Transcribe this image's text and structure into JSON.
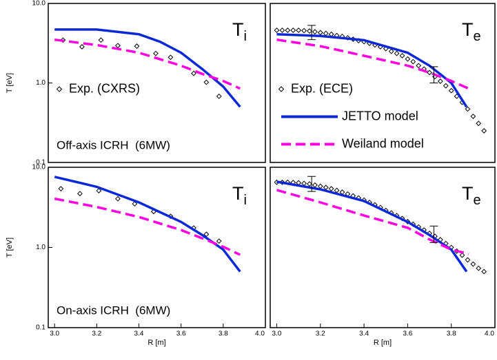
{
  "chart_data": [
    {
      "type": "line",
      "label": "T",
      "label_sub": "i",
      "ylabel": "T [eV]",
      "log_y": true,
      "xlim": [
        2.97,
        4.0
      ],
      "ylim": [
        0.1,
        10
      ],
      "yticks": [
        0.1,
        {
          "value": 1,
          "label": "1.0"
        },
        {
          "value": 10,
          "label": "10.0"
        }
      ],
      "annotation": "Off-axis ICRH  (6MW)",
      "legend": "center left",
      "series": [
        {
          "name": "Exp. (CXRS)",
          "color": "#000000",
          "style": "diamond",
          "x": [
            3.04,
            3.13,
            3.22,
            3.3,
            3.39,
            3.48,
            3.55,
            3.66,
            3.72,
            3.78
          ],
          "values": [
            3.46,
            2.85,
            3.46,
            2.95,
            2.9,
            2.35,
            2.1,
            1.32,
            1.02,
            0.68
          ]
        },
        {
          "color": "#0a28d8",
          "style": "solid",
          "x": [
            3.0,
            3.2,
            3.4,
            3.5,
            3.6,
            3.7,
            3.8,
            3.88
          ],
          "values": [
            4.7,
            4.7,
            4.1,
            3.3,
            2.4,
            1.5,
            0.9,
            0.5
          ]
        },
        {
          "color": "#ff00e0",
          "style": "dashed",
          "x": [
            3.0,
            3.2,
            3.4,
            3.6,
            3.7,
            3.8,
            3.88
          ],
          "values": [
            3.5,
            3.0,
            2.4,
            1.65,
            1.3,
            1.06,
            0.85
          ]
        }
      ]
    },
    {
      "type": "line",
      "label": "T",
      "label_sub": "e",
      "log_y": true,
      "xlim": [
        2.97,
        4.0
      ],
      "ylim": [
        0.1,
        10
      ],
      "legend": "center left",
      "error_bars": [
        {
          "x": 3.16,
          "y": 4.4,
          "low": 3.5,
          "high": 5.3
        },
        {
          "x": 3.72,
          "y": 1.25,
          "low": 1.0,
          "high": 1.6
        }
      ],
      "series": [
        {
          "name": "Exp. (ECE)",
          "color": "#000000",
          "style": "diamond",
          "x": [
            3.0,
            3.025,
            3.05,
            3.075,
            3.1,
            3.125,
            3.15,
            3.175,
            3.2,
            3.225,
            3.25,
            3.275,
            3.3,
            3.325,
            3.35,
            3.375,
            3.4,
            3.425,
            3.45,
            3.475,
            3.5,
            3.525,
            3.55,
            3.575,
            3.6,
            3.625,
            3.65,
            3.675,
            3.7,
            3.725,
            3.75,
            3.775,
            3.8,
            3.825,
            3.85,
            3.875,
            3.9,
            3.925,
            3.95
          ],
          "values": [
            4.6,
            4.6,
            4.6,
            4.6,
            4.6,
            4.55,
            4.5,
            4.4,
            4.3,
            4.2,
            4.1,
            3.95,
            3.85,
            3.7,
            3.55,
            3.4,
            3.3,
            3.15,
            3.0,
            2.85,
            2.7,
            2.5,
            2.35,
            2.2,
            2.0,
            1.85,
            1.65,
            1.5,
            1.35,
            1.2,
            1.05,
            0.92,
            0.8,
            0.68,
            0.57,
            0.47,
            0.38,
            0.31,
            0.25
          ]
        },
        {
          "name": "JETTO model",
          "color": "#0a28d8",
          "style": "solid",
          "x": [
            3.0,
            3.2,
            3.4,
            3.6,
            3.7,
            3.8,
            3.87
          ],
          "values": [
            4.1,
            3.9,
            3.45,
            2.4,
            1.65,
            1.0,
            0.5
          ]
        },
        {
          "name": "Weiland model",
          "color": "#ff00e0",
          "style": "dashed",
          "x": [
            3.0,
            3.2,
            3.4,
            3.6,
            3.7,
            3.8,
            3.88
          ],
          "values": [
            3.5,
            2.9,
            2.2,
            1.65,
            1.35,
            1.06,
            0.85
          ]
        }
      ]
    },
    {
      "type": "line",
      "label": "T",
      "label_sub": "i",
      "ylabel": "T [eV]",
      "xlabel": "R [m]",
      "log_y": true,
      "xlim": [
        2.97,
        4.0
      ],
      "ylim": [
        0.1,
        10
      ],
      "yticks": [
        0.1,
        {
          "value": 1,
          "label": "1.0"
        },
        {
          "value": 10,
          "label": "10.0"
        }
      ],
      "xticks": [
        {
          "value": 3,
          "label": "3.0"
        },
        3.2,
        3.4,
        3.6,
        3.8,
        {
          "value": 4,
          "label": "4.0"
        }
      ],
      "annotation": "On-axis ICRH  (6MW)",
      "series": [
        {
          "color": "#000000",
          "style": "diamond",
          "x": [
            3.03,
            3.12,
            3.21,
            3.3,
            3.38,
            3.47,
            3.55,
            3.66,
            3.72,
            3.78
          ],
          "values": [
            5.4,
            4.7,
            5.1,
            4.05,
            3.5,
            2.8,
            2.45,
            1.75,
            1.46,
            1.2
          ]
        },
        {
          "color": "#0a28d8",
          "style": "solid",
          "x": [
            3.0,
            3.2,
            3.4,
            3.6,
            3.7,
            3.8,
            3.88
          ],
          "values": [
            7.6,
            5.7,
            3.65,
            2.08,
            1.43,
            0.94,
            0.5
          ]
        },
        {
          "color": "#ff00e0",
          "style": "dashed",
          "x": [
            3.0,
            3.2,
            3.4,
            3.6,
            3.7,
            3.8,
            3.88
          ],
          "values": [
            4.06,
            3.2,
            2.4,
            1.65,
            1.3,
            1.02,
            0.81
          ]
        }
      ]
    },
    {
      "type": "line",
      "label": "T",
      "label_sub": "e",
      "xlabel": "R [m]",
      "log_y": true,
      "xlim": [
        2.97,
        4.0
      ],
      "ylim": [
        0.1,
        10
      ],
      "xticks": [
        {
          "value": 3,
          "label": "3.0"
        },
        3.2,
        3.4,
        3.6,
        3.8,
        {
          "value": 4,
          "label": "4.0"
        }
      ],
      "error_bars": [
        {
          "x": 3.16,
          "y": 6.3,
          "low": 5.0,
          "high": 7.7
        },
        {
          "x": 3.72,
          "y": 1.45,
          "low": 1.15,
          "high": 1.85
        }
      ],
      "series": [
        {
          "color": "#000000",
          "style": "diamond",
          "x": [
            3.0,
            3.025,
            3.05,
            3.075,
            3.1,
            3.125,
            3.15,
            3.175,
            3.2,
            3.225,
            3.25,
            3.275,
            3.3,
            3.325,
            3.35,
            3.375,
            3.4,
            3.425,
            3.45,
            3.475,
            3.5,
            3.525,
            3.55,
            3.575,
            3.6,
            3.625,
            3.65,
            3.675,
            3.7,
            3.725,
            3.75,
            3.775,
            3.8,
            3.825,
            3.85,
            3.875,
            3.9,
            3.925,
            3.95
          ],
          "values": [
            6.5,
            6.5,
            6.5,
            6.45,
            6.4,
            6.3,
            6.2,
            6.0,
            5.8,
            5.6,
            5.4,
            5.15,
            4.9,
            4.65,
            4.4,
            4.15,
            3.9,
            3.65,
            3.4,
            3.15,
            2.9,
            2.7,
            2.5,
            2.3,
            2.1,
            1.95,
            1.8,
            1.65,
            1.5,
            1.38,
            1.25,
            1.12,
            1.0,
            0.9,
            0.8,
            0.7,
            0.62,
            0.55,
            0.5
          ]
        },
        {
          "color": "#0a28d8",
          "style": "solid",
          "x": [
            3.0,
            3.2,
            3.4,
            3.6,
            3.7,
            3.8,
            3.87
          ],
          "values": [
            6.6,
            5.3,
            3.8,
            2.08,
            1.43,
            0.94,
            0.5
          ]
        },
        {
          "color": "#ff00e0",
          "style": "dashed",
          "x": [
            3.0,
            3.2,
            3.4,
            3.6,
            3.7,
            3.8,
            3.88
          ],
          "values": [
            5.2,
            3.65,
            2.5,
            1.76,
            1.26,
            0.94,
            0.83
          ]
        }
      ]
    }
  ]
}
